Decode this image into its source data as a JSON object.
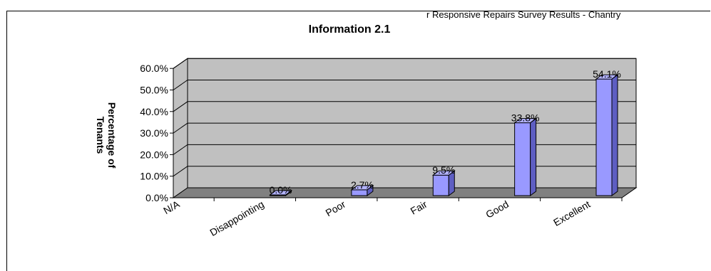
{
  "caption": "r Responsive Repairs Survey Results - Chantry",
  "chart_data": {
    "type": "bar",
    "title": "Information 2.1",
    "ylabel_lines": [
      "Percentage of",
      "Tenants"
    ],
    "xlabel": "",
    "categories": [
      "N/A",
      "Disappointing",
      "Poor",
      "Fair",
      "Good",
      "Excellent"
    ],
    "values": [
      0.0,
      0.0,
      2.7,
      9.5,
      33.8,
      54.1
    ],
    "data_labels": [
      "",
      "0.0%",
      "2.7%",
      "9.5%",
      "33.8%",
      "54.1%"
    ],
    "yticks": [
      "0.0%",
      "10.0%",
      "20.0%",
      "30.0%",
      "40.0%",
      "50.0%",
      "60.0%"
    ],
    "ylim": [
      0,
      60
    ],
    "grid": true,
    "legend": "none",
    "colors": {
      "bar_face": "#9999ff",
      "bar_side": "#5e5ec2",
      "bar_top": "#b3b3ff",
      "wall": "#c0c0c0",
      "floor": "#808080",
      "gridline": "#000000"
    }
  }
}
